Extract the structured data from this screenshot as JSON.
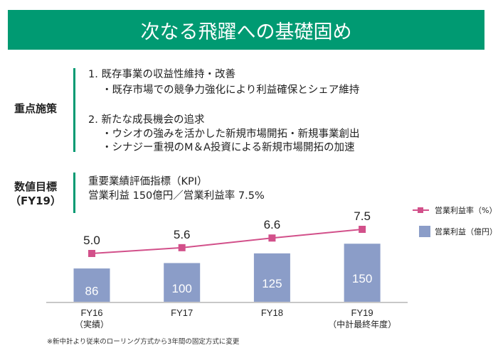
{
  "header": {
    "title": "次なる飛躍への基礎固め"
  },
  "sections": {
    "measures": {
      "label": "重点施策",
      "items": [
        "1. 既存事業の収益性維持・改善",
        "・既存市場での競争力強化により利益確保とシェア維持",
        "2. 新たな成長機会の追求",
        "・ウシオの強みを活かした新規市場開拓・新規事業創出",
        "・シナジー重視のM＆A投資による新規市場開拓の加速"
      ]
    },
    "targets": {
      "label_line1": "数値目標",
      "label_line2": "（FY19）",
      "lines": [
        "重要業績評価指標（KPI）",
        "営業利益 150億円／営業利益率 7.5%"
      ]
    }
  },
  "chart_data": {
    "type": "bar",
    "categories": [
      "FY16",
      "FY17",
      "FY18",
      "FY19"
    ],
    "category_sublabels": [
      "（実績）",
      "",
      "",
      "（中計最終年度）"
    ],
    "series": [
      {
        "name": "営業利益（億円）",
        "type": "bar",
        "values": [
          86,
          100,
          125,
          150
        ],
        "color": "#8b9dc8"
      },
      {
        "name": "営業利益率（%）",
        "type": "line",
        "values": [
          5.0,
          5.6,
          6.6,
          7.5
        ],
        "color": "#d2508a"
      }
    ],
    "data_labels": {
      "bar": [
        "86",
        "100",
        "125",
        "150"
      ],
      "line": [
        "5.0",
        "5.6",
        "6.6",
        "7.5"
      ]
    },
    "legend": "right",
    "grid": false
  },
  "footnote": "※新中計より従来のローリング方式から3年間の固定方式に変更",
  "colors": {
    "accent": "#009a72",
    "axis": "#c8c8c8"
  }
}
